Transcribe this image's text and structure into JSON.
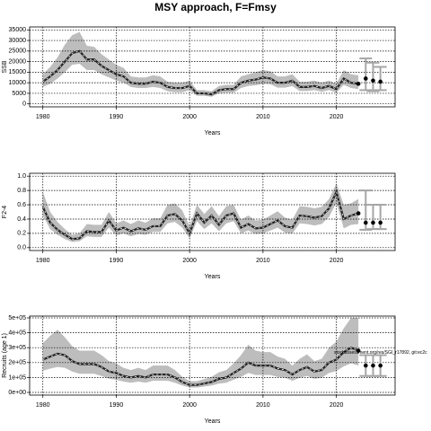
{
  "title": "MSY approach, F=Fmsy",
  "chart_data": [
    {
      "type": "line",
      "ylabel": "SSB",
      "xlabel": "Years",
      "line_color": "#222222",
      "band_color": "#bdbdbd",
      "errorbar_color": "#a6a6a6",
      "grid": true,
      "xlim": [
        1978.2,
        2028
      ],
      "xticks": [
        1980,
        1990,
        2000,
        2010,
        2020
      ],
      "ylim": [
        -1400,
        36400
      ],
      "yticks": [
        0,
        5000,
        10000,
        15000,
        20000,
        25000,
        30000,
        35000
      ],
      "x": [
        1980,
        1981,
        1982,
        1983,
        1984,
        1985,
        1986,
        1987,
        1988,
        1989,
        1990,
        1991,
        1992,
        1993,
        1994,
        1995,
        1996,
        1997,
        1998,
        1999,
        2000,
        2001,
        2002,
        2003,
        2004,
        2005,
        2006,
        2007,
        2008,
        2009,
        2010,
        2011,
        2012,
        2013,
        2014,
        2015,
        2016,
        2017,
        2018,
        2019,
        2020,
        2021,
        2022,
        2023
      ],
      "values": [
        10500,
        13000,
        16000,
        20000,
        24000,
        25000,
        21000,
        21000,
        18000,
        16000,
        14000,
        13000,
        10000,
        9500,
        9500,
        10500,
        10000,
        8000,
        7500,
        7500,
        8500,
        5000,
        5000,
        4500,
        6500,
        7000,
        7000,
        10000,
        11000,
        11500,
        12500,
        12000,
        10000,
        10000,
        11000,
        8000,
        8000,
        8500,
        7500,
        8500,
        7000,
        12000,
        10000,
        9500
      ],
      "upper": [
        14000,
        17500,
        22000,
        28000,
        32500,
        34000,
        27500,
        27000,
        23500,
        21000,
        18500,
        17000,
        13000,
        12500,
        12500,
        13500,
        13000,
        10500,
        10000,
        10000,
        11000,
        6500,
        6500,
        6000,
        8500,
        9000,
        9000,
        13000,
        14000,
        15000,
        16000,
        15500,
        13000,
        13000,
        14000,
        10500,
        10500,
        11000,
        10000,
        11000,
        9500,
        16000,
        14000,
        13500
      ],
      "lower": [
        8000,
        9500,
        12000,
        15000,
        18500,
        19000,
        16000,
        16000,
        14000,
        12500,
        11000,
        10000,
        8000,
        7500,
        7500,
        8000,
        7500,
        6000,
        5500,
        5500,
        6500,
        3800,
        3800,
        3400,
        5000,
        5300,
        5300,
        7500,
        8500,
        8800,
        9500,
        9300,
        7700,
        7700,
        8400,
        6100,
        6100,
        6500,
        5700,
        6500,
        5300,
        9000,
        7500,
        7000
      ],
      "forecast": {
        "x": [
          2024,
          2025,
          2026
        ],
        "values": [
          12000,
          11000,
          10500
        ],
        "lower": [
          6500,
          6000,
          6500
        ],
        "upper": [
          21500,
          19500,
          17500
        ]
      }
    },
    {
      "type": "line",
      "ylabel": "F2-4",
      "xlabel": "Years",
      "line_color": "#222222",
      "band_color": "#bdbdbd",
      "errorbar_color": "#a6a6a6",
      "grid": true,
      "xlim": [
        1978.2,
        2028
      ],
      "xticks": [
        1980,
        1990,
        2000,
        2010,
        2020
      ],
      "ylim": [
        -0.04,
        1.04
      ],
      "yticks": [
        {
          "value": 0,
          "label": "0.0"
        },
        0.2,
        0.4,
        0.6,
        0.8,
        {
          "value": 1,
          "label": "1.0"
        }
      ],
      "x": [
        1980,
        1981,
        1982,
        1983,
        1984,
        1985,
        1986,
        1987,
        1988,
        1989,
        1990,
        1991,
        1992,
        1993,
        1994,
        1995,
        1996,
        1997,
        1998,
        1999,
        2000,
        2001,
        2002,
        2003,
        2004,
        2005,
        2006,
        2007,
        2008,
        2009,
        2010,
        2011,
        2012,
        2013,
        2014,
        2015,
        2016,
        2017,
        2018,
        2019,
        2020,
        2021,
        2022,
        2023
      ],
      "values": [
        0.57,
        0.35,
        0.25,
        0.18,
        0.12,
        0.13,
        0.23,
        0.22,
        0.22,
        0.38,
        0.24,
        0.28,
        0.23,
        0.27,
        0.25,
        0.3,
        0.3,
        0.45,
        0.47,
        0.38,
        0.2,
        0.48,
        0.35,
        0.45,
        0.32,
        0.45,
        0.48,
        0.28,
        0.33,
        0.27,
        0.28,
        0.33,
        0.38,
        0.3,
        0.28,
        0.45,
        0.44,
        0.42,
        0.44,
        0.55,
        0.78,
        0.4,
        0.45,
        0.48
      ],
      "upper": [
        0.78,
        0.5,
        0.36,
        0.26,
        0.18,
        0.2,
        0.33,
        0.32,
        0.32,
        0.5,
        0.34,
        0.38,
        0.33,
        0.38,
        0.35,
        0.41,
        0.41,
        0.6,
        0.62,
        0.52,
        0.3,
        0.6,
        0.47,
        0.58,
        0.44,
        0.58,
        0.6,
        0.39,
        0.45,
        0.38,
        0.39,
        0.45,
        0.51,
        0.42,
        0.39,
        0.58,
        0.57,
        0.55,
        0.57,
        0.68,
        0.9,
        0.6,
        0.62,
        0.68
      ],
      "lower": [
        0.45,
        0.26,
        0.18,
        0.12,
        0.08,
        0.09,
        0.16,
        0.15,
        0.15,
        0.28,
        0.17,
        0.2,
        0.16,
        0.19,
        0.18,
        0.22,
        0.22,
        0.34,
        0.36,
        0.28,
        0.13,
        0.37,
        0.26,
        0.34,
        0.23,
        0.34,
        0.37,
        0.2,
        0.24,
        0.19,
        0.2,
        0.24,
        0.28,
        0.21,
        0.2,
        0.34,
        0.33,
        0.31,
        0.33,
        0.43,
        0.63,
        0.27,
        0.32,
        0.33
      ],
      "forecast": {
        "x": [
          2024,
          2025,
          2026
        ],
        "values": [
          0.35,
          0.35,
          0.35
        ],
        "lower": [
          0.25,
          0.26,
          0.26
        ],
        "upper": [
          0.8,
          0.6,
          0.6
        ]
      }
    },
    {
      "type": "line",
      "ylabel": "Recruits (age 1)",
      "xlabel": "Years",
      "line_color": "#222222",
      "band_color": "#bdbdbd",
      "errorbar_color": "#a6a6a6",
      "grid": true,
      "annotation": "stockassessment.org/res/SGI_r17892, git:ec2c",
      "xlim": [
        1978.2,
        2028
      ],
      "xticks": [
        1980,
        1990,
        2000,
        2010,
        2020
      ],
      "ylim": [
        -18000,
        512000
      ],
      "yticks": [
        {
          "value": 0,
          "label": "0e+00"
        },
        {
          "value": 100000,
          "label": "1e+05"
        },
        {
          "value": 200000,
          "label": "2e+05"
        },
        {
          "value": 300000,
          "label": "3e+05"
        },
        {
          "value": 400000,
          "label": "4e+05"
        },
        {
          "value": 500000,
          "label": "5e+05"
        }
      ],
      "x": [
        1980,
        1981,
        1982,
        1983,
        1984,
        1985,
        1986,
        1987,
        1988,
        1989,
        1990,
        1991,
        1992,
        1993,
        1994,
        1995,
        1996,
        1997,
        1998,
        1999,
        2000,
        2001,
        2002,
        2003,
        2004,
        2005,
        2006,
        2007,
        2008,
        2009,
        2010,
        2011,
        2012,
        2013,
        2014,
        2015,
        2016,
        2017,
        2018,
        2019,
        2020,
        2021,
        2022,
        2023
      ],
      "values": [
        220000,
        240000,
        260000,
        250000,
        210000,
        190000,
        190000,
        190000,
        170000,
        140000,
        130000,
        110000,
        100000,
        110000,
        100000,
        120000,
        120000,
        120000,
        100000,
        70000,
        50000,
        50000,
        60000,
        70000,
        90000,
        100000,
        130000,
        160000,
        200000,
        180000,
        180000,
        180000,
        160000,
        150000,
        120000,
        150000,
        170000,
        140000,
        150000,
        200000,
        220000,
        270000,
        300000,
        280000
      ],
      "upper": [
        330000,
        380000,
        420000,
        370000,
        310000,
        280000,
        280000,
        280000,
        250000,
        210000,
        195000,
        165000,
        150000,
        165000,
        150000,
        180000,
        180000,
        180000,
        150000,
        105000,
        75000,
        75000,
        90000,
        105000,
        135000,
        150000,
        195000,
        250000,
        320000,
        280000,
        270000,
        270000,
        240000,
        225000,
        180000,
        225000,
        255000,
        210000,
        225000,
        300000,
        340000,
        430000,
        500000,
        500000
      ],
      "lower": [
        145000,
        160000,
        170000,
        165000,
        140000,
        125000,
        125000,
        125000,
        110000,
        92000,
        85000,
        72000,
        65000,
        72000,
        65000,
        78000,
        78000,
        78000,
        65000,
        46000,
        33000,
        33000,
        39000,
        46000,
        59000,
        65000,
        85000,
        104000,
        130000,
        117000,
        117000,
        117000,
        104000,
        98000,
        78000,
        98000,
        110000,
        91000,
        98000,
        130000,
        143000,
        175000,
        195000,
        180000
      ],
      "forecast": {
        "x": [
          2024,
          2025,
          2026
        ],
        "values": [
          180000,
          180000,
          180000
        ],
        "lower": [
          110000,
          110000,
          110000
        ],
        "upper": [
          250000,
          250000,
          250000
        ]
      }
    }
  ]
}
